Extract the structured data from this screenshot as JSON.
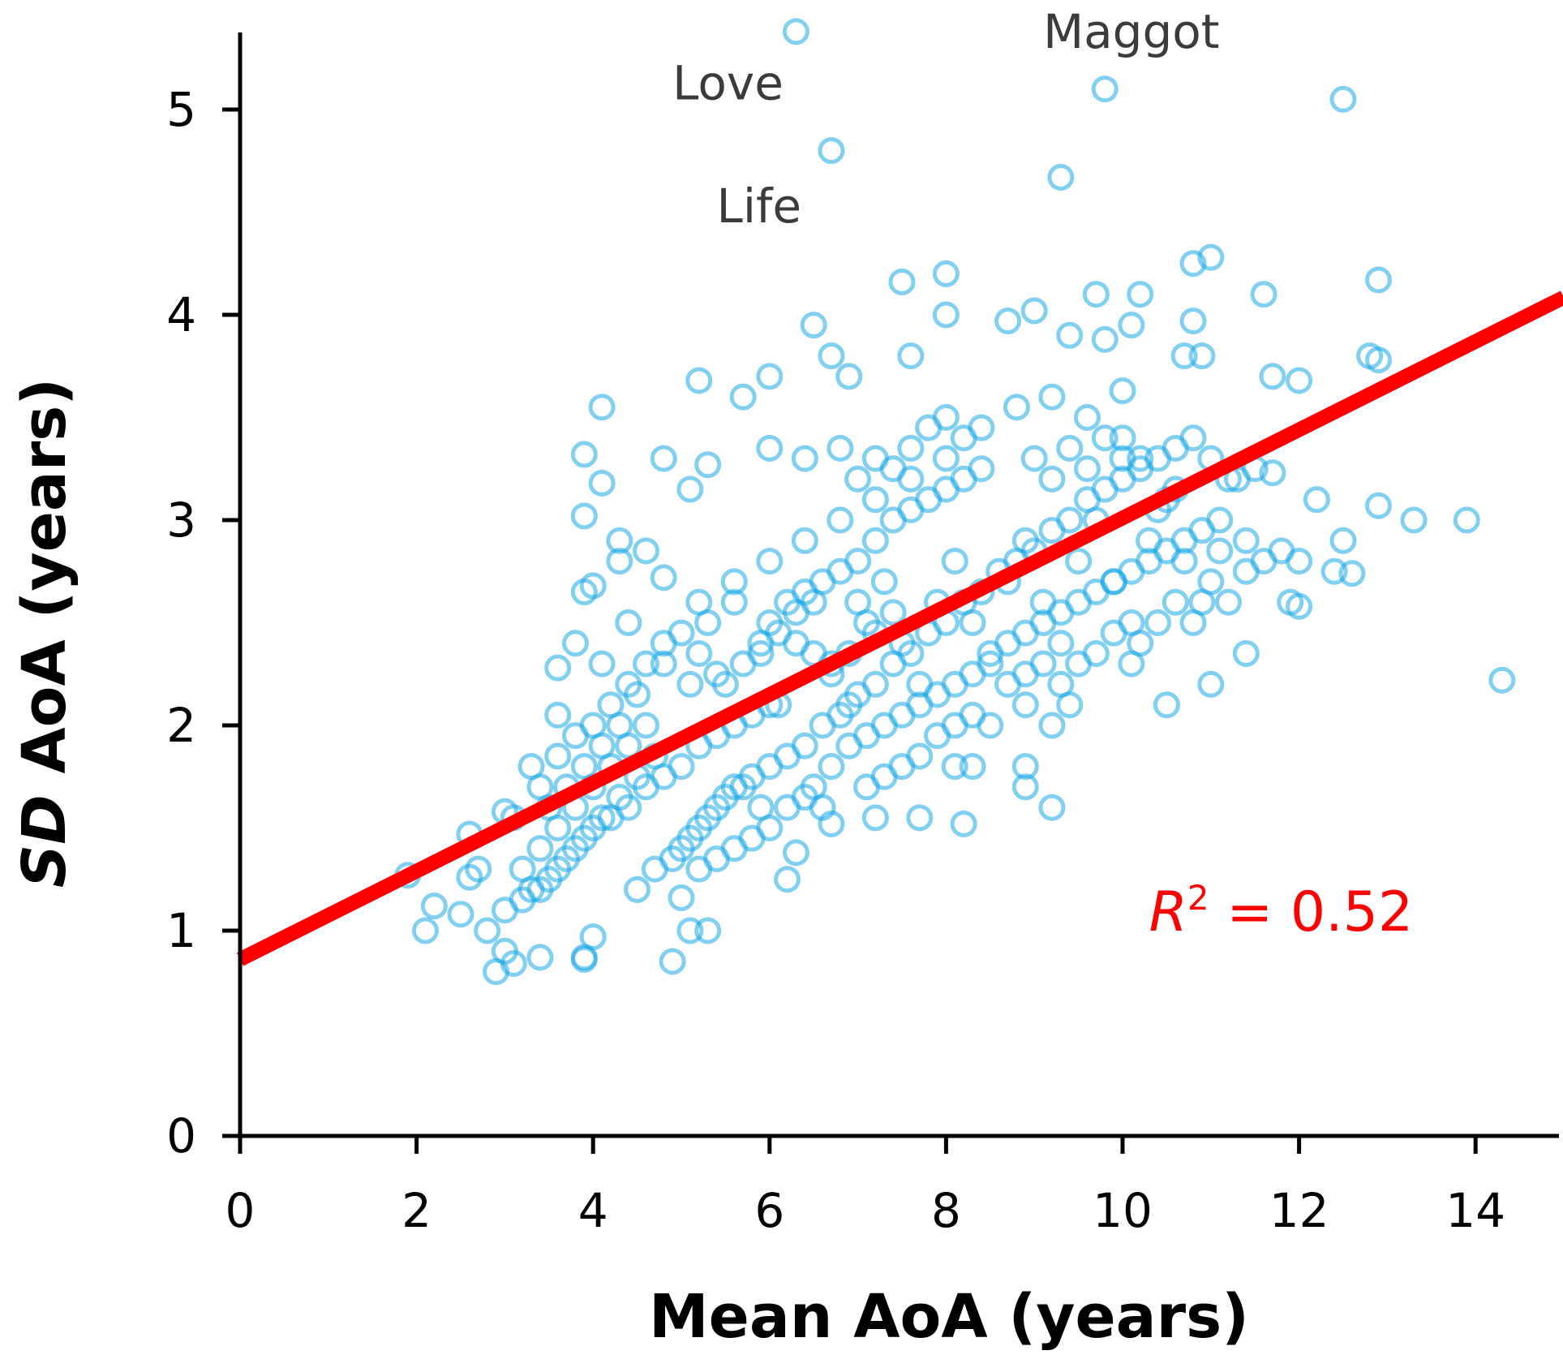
{
  "chart_data": {
    "type": "scatter",
    "title": "",
    "xlabel": "Mean AoA (years)",
    "ylabel_italic_part": "SD",
    "ylabel_rest": " AoA (years)",
    "xlim": [
      0,
      15
    ],
    "ylim": [
      0,
      5.4
    ],
    "xticks": [
      0,
      2,
      4,
      6,
      8,
      10,
      12,
      14
    ],
    "yticks": [
      0,
      1,
      2,
      3,
      4,
      5
    ],
    "grid": false,
    "colors": {
      "points": "#1aa7e6",
      "fit_line": "#ff0000",
      "r2_text": "#ff0000",
      "axes": "#000000"
    },
    "fit_line": {
      "intercept": 0.86,
      "slope": 0.215,
      "x_range": [
        0,
        15
      ]
    },
    "r_squared": {
      "symbol": "R",
      "exponent": "2",
      "text": " = 0.52",
      "x": 10.3,
      "y": 1.0
    },
    "annotations": [
      {
        "text": "Maggot",
        "x": 9.1,
        "y": 5.3
      },
      {
        "text": "Love",
        "x": 4.9,
        "y": 5.05
      },
      {
        "text": "Life",
        "x": 5.4,
        "y": 4.45
      }
    ],
    "points": [
      [
        6.3,
        5.38
      ],
      [
        9.8,
        5.1
      ],
      [
        12.5,
        5.05
      ],
      [
        6.7,
        4.8
      ],
      [
        9.3,
        4.67
      ],
      [
        7.5,
        4.16
      ],
      [
        8.0,
        4.2
      ],
      [
        9.7,
        4.1
      ],
      [
        10.2,
        4.1
      ],
      [
        10.8,
        4.25
      ],
      [
        11.0,
        4.28
      ],
      [
        11.6,
        4.1
      ],
      [
        12.9,
        4.17
      ],
      [
        6.5,
        3.95
      ],
      [
        8.0,
        4.0
      ],
      [
        8.7,
        3.97
      ],
      [
        9.0,
        4.02
      ],
      [
        9.4,
        3.9
      ],
      [
        10.1,
        3.95
      ],
      [
        10.8,
        3.97
      ],
      [
        9.8,
        3.88
      ],
      [
        12.8,
        3.8
      ],
      [
        12.9,
        3.78
      ],
      [
        11.7,
        3.7
      ],
      [
        12.0,
        3.68
      ],
      [
        7.6,
        3.8
      ],
      [
        6.7,
        3.8
      ],
      [
        5.2,
        3.68
      ],
      [
        6.0,
        3.7
      ],
      [
        4.1,
        3.55
      ],
      [
        5.7,
        3.6
      ],
      [
        6.9,
        3.7
      ],
      [
        10.0,
        3.63
      ],
      [
        10.7,
        3.8
      ],
      [
        10.9,
        3.8
      ],
      [
        3.9,
        3.32
      ],
      [
        4.1,
        3.18
      ],
      [
        4.8,
        3.3
      ],
      [
        5.3,
        3.27
      ],
      [
        3.9,
        3.02
      ],
      [
        5.1,
        3.15
      ],
      [
        6.0,
        3.35
      ],
      [
        6.4,
        3.3
      ],
      [
        11.3,
        3.2
      ],
      [
        11.5,
        3.25
      ],
      [
        11.7,
        3.23
      ],
      [
        12.2,
        3.1
      ],
      [
        12.9,
        3.07
      ],
      [
        13.3,
        3.0
      ],
      [
        13.9,
        3.0
      ],
      [
        12.5,
        2.9
      ],
      [
        12.4,
        2.75
      ],
      [
        12.6,
        2.74
      ],
      [
        11.4,
        2.9
      ],
      [
        11.9,
        2.6
      ],
      [
        12.0,
        2.58
      ],
      [
        12.0,
        2.8
      ],
      [
        11.8,
        2.85
      ],
      [
        11.4,
        2.35
      ],
      [
        10.5,
        2.1
      ],
      [
        11.0,
        2.2
      ],
      [
        14.3,
        2.22
      ],
      [
        9.2,
        2.0
      ],
      [
        9.4,
        2.1
      ],
      [
        8.9,
        2.1
      ],
      [
        8.9,
        1.8
      ],
      [
        8.9,
        1.7
      ],
      [
        9.2,
        1.6
      ],
      [
        8.1,
        1.8
      ],
      [
        8.3,
        1.8
      ],
      [
        7.7,
        1.55
      ],
      [
        8.2,
        1.52
      ],
      [
        7.2,
        1.55
      ],
      [
        6.7,
        1.52
      ],
      [
        6.3,
        1.38
      ],
      [
        6.2,
        1.25
      ],
      [
        5.0,
        1.16
      ],
      [
        5.1,
        1.0
      ],
      [
        5.3,
        1.0
      ],
      [
        4.9,
        0.85
      ],
      [
        4.0,
        0.97
      ],
      [
        3.9,
        0.86
      ],
      [
        3.9,
        0.87
      ],
      [
        3.4,
        0.87
      ],
      [
        3.1,
        0.84
      ],
      [
        2.9,
        0.8
      ],
      [
        3.0,
        0.9
      ],
      [
        2.8,
        1.0
      ],
      [
        2.1,
        1.0
      ],
      [
        2.5,
        1.08
      ],
      [
        2.2,
        1.12
      ],
      [
        1.9,
        1.27
      ],
      [
        2.6,
        1.47
      ],
      [
        2.6,
        1.26
      ],
      [
        2.7,
        1.3
      ],
      [
        3.0,
        1.58
      ],
      [
        3.1,
        1.55
      ],
      [
        3.3,
        1.8
      ],
      [
        3.6,
        2.05
      ],
      [
        3.6,
        2.28
      ],
      [
        3.8,
        2.4
      ],
      [
        3.9,
        2.65
      ],
      [
        4.0,
        2.68
      ],
      [
        4.3,
        2.9
      ],
      [
        4.3,
        2.8
      ],
      [
        4.6,
        2.85
      ],
      [
        4.8,
        2.72
      ],
      [
        4.4,
        2.5
      ],
      [
        4.1,
        2.3
      ],
      [
        4.5,
        2.15
      ],
      [
        4.8,
        2.3
      ],
      [
        5.1,
        2.2
      ],
      [
        5.3,
        2.5
      ],
      [
        5.6,
        2.6
      ],
      [
        5.9,
        2.35
      ],
      [
        6.1,
        2.1
      ],
      [
        6.3,
        2.4
      ],
      [
        6.5,
        2.6
      ],
      [
        6.7,
        2.3
      ],
      [
        6.9,
        2.1
      ],
      [
        7.1,
        2.5
      ],
      [
        7.3,
        2.7
      ],
      [
        7.5,
        2.4
      ],
      [
        7.7,
        2.2
      ],
      [
        7.9,
        2.6
      ],
      [
        8.1,
        2.8
      ],
      [
        8.3,
        2.5
      ],
      [
        8.5,
        2.3
      ],
      [
        8.7,
        2.7
      ],
      [
        8.9,
        2.9
      ],
      [
        9.1,
        2.6
      ],
      [
        9.3,
        2.4
      ],
      [
        9.5,
        2.8
      ],
      [
        9.7,
        3.0
      ],
      [
        9.9,
        2.7
      ],
      [
        10.1,
        2.5
      ],
      [
        10.3,
        2.9
      ],
      [
        10.5,
        3.1
      ],
      [
        10.7,
        2.8
      ],
      [
        10.9,
        2.6
      ],
      [
        11.1,
        3.0
      ],
      [
        10.2,
        3.3
      ],
      [
        10.0,
        3.4
      ],
      [
        9.6,
        3.5
      ],
      [
        9.2,
        3.6
      ],
      [
        8.8,
        3.55
      ],
      [
        8.4,
        3.45
      ],
      [
        8.0,
        3.3
      ],
      [
        7.6,
        3.2
      ],
      [
        7.2,
        3.1
      ],
      [
        6.8,
        3.0
      ],
      [
        6.4,
        2.9
      ],
      [
        6.0,
        2.8
      ],
      [
        5.6,
        2.7
      ],
      [
        5.2,
        2.6
      ],
      [
        3.2,
        1.3
      ],
      [
        3.4,
        1.4
      ],
      [
        3.6,
        1.5
      ],
      [
        3.8,
        1.6
      ],
      [
        4.0,
        1.7
      ],
      [
        4.2,
        1.8
      ],
      [
        4.4,
        1.9
      ],
      [
        4.6,
        2.0
      ],
      [
        3.3,
        1.2
      ],
      [
        3.5,
        1.25
      ],
      [
        3.7,
        1.35
      ],
      [
        3.9,
        1.45
      ],
      [
        4.1,
        1.55
      ],
      [
        4.3,
        1.65
      ],
      [
        4.5,
        1.75
      ],
      [
        4.7,
        1.85
      ],
      [
        3.0,
        1.1
      ],
      [
        3.2,
        1.15
      ],
      [
        3.4,
        1.2
      ],
      [
        3.6,
        1.3
      ],
      [
        3.8,
        1.4
      ],
      [
        4.0,
        1.5
      ],
      [
        4.2,
        1.55
      ],
      [
        4.4,
        1.6
      ],
      [
        4.6,
        1.7
      ],
      [
        4.8,
        1.75
      ],
      [
        5.0,
        1.8
      ],
      [
        5.2,
        1.9
      ],
      [
        5.4,
        1.95
      ],
      [
        5.6,
        2.0
      ],
      [
        5.8,
        2.05
      ],
      [
        6.0,
        2.1
      ],
      [
        5.0,
        1.4
      ],
      [
        5.2,
        1.5
      ],
      [
        5.4,
        1.6
      ],
      [
        5.6,
        1.7
      ],
      [
        5.8,
        1.75
      ],
      [
        6.0,
        1.8
      ],
      [
        6.2,
        1.85
      ],
      [
        6.4,
        1.9
      ],
      [
        6.6,
        2.0
      ],
      [
        6.8,
        2.05
      ],
      [
        7.0,
        2.15
      ],
      [
        7.2,
        2.2
      ],
      [
        7.4,
        2.3
      ],
      [
        7.6,
        2.35
      ],
      [
        7.8,
        2.45
      ],
      [
        8.0,
        2.5
      ],
      [
        8.2,
        2.6
      ],
      [
        8.4,
        2.65
      ],
      [
        8.6,
        2.75
      ],
      [
        8.8,
        2.8
      ],
      [
        9.0,
        2.85
      ],
      [
        9.2,
        2.95
      ],
      [
        9.4,
        3.0
      ],
      [
        9.6,
        3.1
      ],
      [
        9.8,
        3.15
      ],
      [
        10.0,
        3.2
      ],
      [
        10.2,
        3.25
      ],
      [
        10.4,
        3.3
      ],
      [
        10.6,
        3.35
      ],
      [
        10.8,
        3.4
      ],
      [
        11.0,
        3.3
      ],
      [
        11.2,
        3.2
      ],
      [
        7.0,
        2.8
      ],
      [
        7.2,
        2.9
      ],
      [
        7.4,
        3.0
      ],
      [
        7.6,
        3.05
      ],
      [
        7.8,
        3.1
      ],
      [
        8.0,
        3.15
      ],
      [
        8.2,
        3.2
      ],
      [
        8.4,
        3.25
      ],
      [
        6.0,
        2.5
      ],
      [
        6.2,
        2.6
      ],
      [
        6.4,
        2.65
      ],
      [
        6.6,
        2.7
      ],
      [
        6.8,
        2.75
      ],
      [
        7.0,
        2.6
      ],
      [
        7.2,
        2.45
      ],
      [
        7.4,
        2.55
      ],
      [
        4.5,
        1.2
      ],
      [
        4.7,
        1.3
      ],
      [
        4.9,
        1.35
      ],
      [
        5.1,
        1.45
      ],
      [
        5.3,
        1.55
      ],
      [
        5.5,
        1.65
      ],
      [
        5.7,
        1.7
      ],
      [
        5.9,
        1.6
      ],
      [
        6.5,
        1.7
      ],
      [
        6.7,
        1.8
      ],
      [
        6.9,
        1.9
      ],
      [
        7.1,
        1.95
      ],
      [
        7.3,
        2.0
      ],
      [
        7.5,
        2.05
      ],
      [
        7.7,
        2.1
      ],
      [
        7.9,
        2.15
      ],
      [
        8.1,
        2.2
      ],
      [
        8.3,
        2.25
      ],
      [
        8.5,
        2.35
      ],
      [
        8.7,
        2.4
      ],
      [
        8.9,
        2.45
      ],
      [
        9.1,
        2.5
      ],
      [
        9.3,
        2.55
      ],
      [
        9.5,
        2.6
      ],
      [
        9.7,
        2.65
      ],
      [
        9.9,
        2.7
      ],
      [
        10.1,
        2.75
      ],
      [
        10.3,
        2.8
      ],
      [
        10.5,
        2.85
      ],
      [
        10.7,
        2.9
      ],
      [
        10.9,
        2.95
      ],
      [
        11.1,
        2.85
      ],
      [
        5.5,
        2.2
      ],
      [
        5.7,
        2.3
      ],
      [
        5.9,
        2.4
      ],
      [
        6.1,
        2.45
      ],
      [
        6.3,
        2.55
      ],
      [
        6.5,
        2.35
      ],
      [
        6.7,
        2.25
      ],
      [
        6.9,
        2.35
      ],
      [
        4.0,
        2.0
      ],
      [
        4.2,
        2.1
      ],
      [
        4.4,
        2.2
      ],
      [
        4.6,
        2.3
      ],
      [
        4.8,
        2.4
      ],
      [
        5.0,
        2.45
      ],
      [
        5.2,
        2.35
      ],
      [
        5.4,
        2.25
      ],
      [
        3.5,
        1.6
      ],
      [
        3.7,
        1.7
      ],
      [
        3.9,
        1.8
      ],
      [
        4.1,
        1.9
      ],
      [
        4.3,
        2.0
      ],
      [
        3.4,
        1.7
      ],
      [
        3.6,
        1.85
      ],
      [
        3.8,
        1.95
      ],
      [
        9.0,
        3.3
      ],
      [
        9.2,
        3.2
      ],
      [
        9.4,
        3.35
      ],
      [
        9.6,
        3.25
      ],
      [
        9.8,
        3.4
      ],
      [
        10.0,
        3.3
      ],
      [
        10.4,
        3.05
      ],
      [
        10.6,
        3.15
      ],
      [
        10.2,
        2.4
      ],
      [
        10.4,
        2.5
      ],
      [
        10.6,
        2.6
      ],
      [
        10.8,
        2.5
      ],
      [
        11.0,
        2.7
      ],
      [
        11.2,
        2.6
      ],
      [
        11.4,
        2.75
      ],
      [
        11.6,
        2.8
      ],
      [
        9.5,
        2.3
      ],
      [
        9.7,
        2.35
      ],
      [
        9.9,
        2.45
      ],
      [
        10.1,
        2.3
      ],
      [
        9.3,
        2.2
      ],
      [
        9.1,
        2.3
      ],
      [
        8.9,
        2.25
      ],
      [
        8.7,
        2.2
      ],
      [
        7.5,
        1.8
      ],
      [
        7.7,
        1.85
      ],
      [
        7.9,
        1.95
      ],
      [
        8.1,
        2.0
      ],
      [
        8.3,
        2.05
      ],
      [
        8.5,
        2.0
      ],
      [
        7.3,
        1.75
      ],
      [
        7.1,
        1.7
      ],
      [
        6.0,
        1.5
      ],
      [
        6.2,
        1.6
      ],
      [
        6.4,
        1.65
      ],
      [
        6.6,
        1.6
      ],
      [
        5.8,
        1.45
      ],
      [
        5.6,
        1.4
      ],
      [
        5.4,
        1.35
      ],
      [
        5.2,
        1.3
      ],
      [
        8.0,
        3.5
      ],
      [
        8.2,
        3.4
      ],
      [
        7.8,
        3.45
      ],
      [
        7.6,
        3.35
      ],
      [
        7.4,
        3.25
      ],
      [
        7.2,
        3.3
      ],
      [
        7.0,
        3.2
      ],
      [
        6.8,
        3.35
      ]
    ]
  }
}
